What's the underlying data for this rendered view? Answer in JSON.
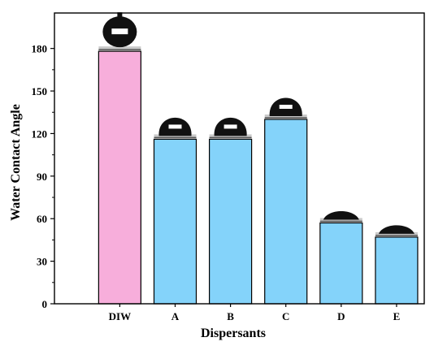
{
  "chart_data": {
    "type": "bar",
    "categories": [
      "DIW",
      "A",
      "B",
      "C",
      "D",
      "E"
    ],
    "values": [
      178,
      116,
      116,
      130,
      57,
      47
    ],
    "xlabel": "Dispersants",
    "ylabel": "Water Contact Angle",
    "ylim": [
      0,
      205
    ],
    "yticks": [
      0,
      30,
      60,
      90,
      120,
      150,
      180
    ],
    "bar_colors": [
      "#f7aedb",
      "#84d3fa",
      "#84d3fa",
      "#84d3fa",
      "#84d3fa",
      "#84d3fa"
    ],
    "grid": false,
    "legend": "none",
    "annotations": "droplet images above each bar"
  }
}
